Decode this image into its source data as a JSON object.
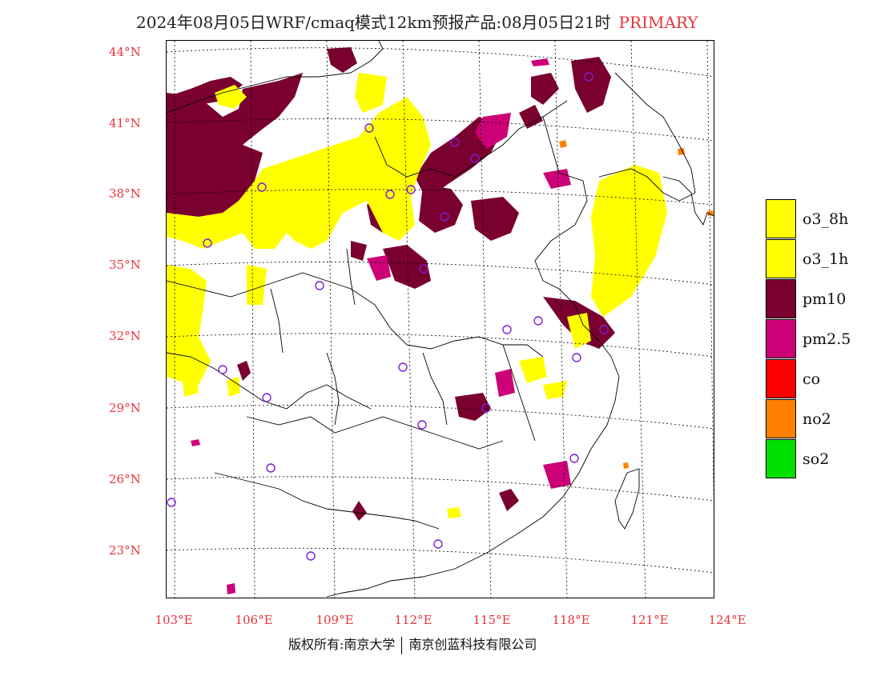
{
  "title": {
    "main": "2024年08月05日WRF/cmaq模式12km预报产品:08月05日21时",
    "tag": "PRIMARY"
  },
  "axes": {
    "latitude_labels": [
      "44°N",
      "41°N",
      "38°N",
      "35°N",
      "32°N",
      "29°N",
      "26°N",
      "23°N"
    ],
    "longitude_labels": [
      "103°E",
      "106°E",
      "109°E",
      "112°E",
      "115°E",
      "118°E",
      "121°E",
      "124°E"
    ]
  },
  "legend": {
    "items": [
      {
        "label": "o3_8h",
        "color": "#ffff00"
      },
      {
        "label": "o3_1h",
        "color": "#ffff00"
      },
      {
        "label": "pm10",
        "color": "#7a0030"
      },
      {
        "label": "pm2.5",
        "color": "#cc0077"
      },
      {
        "label": "co",
        "color": "#ff0000"
      },
      {
        "label": "no2",
        "color": "#ff8000"
      },
      {
        "label": "so2",
        "color": "#00e000"
      }
    ]
  },
  "footer": {
    "left": "版权所有:南京大学",
    "right": "南京创蓝科技有限公司"
  },
  "colors": {
    "axis_label": "#e8353b",
    "station_marker": "#7a1fd6"
  }
}
